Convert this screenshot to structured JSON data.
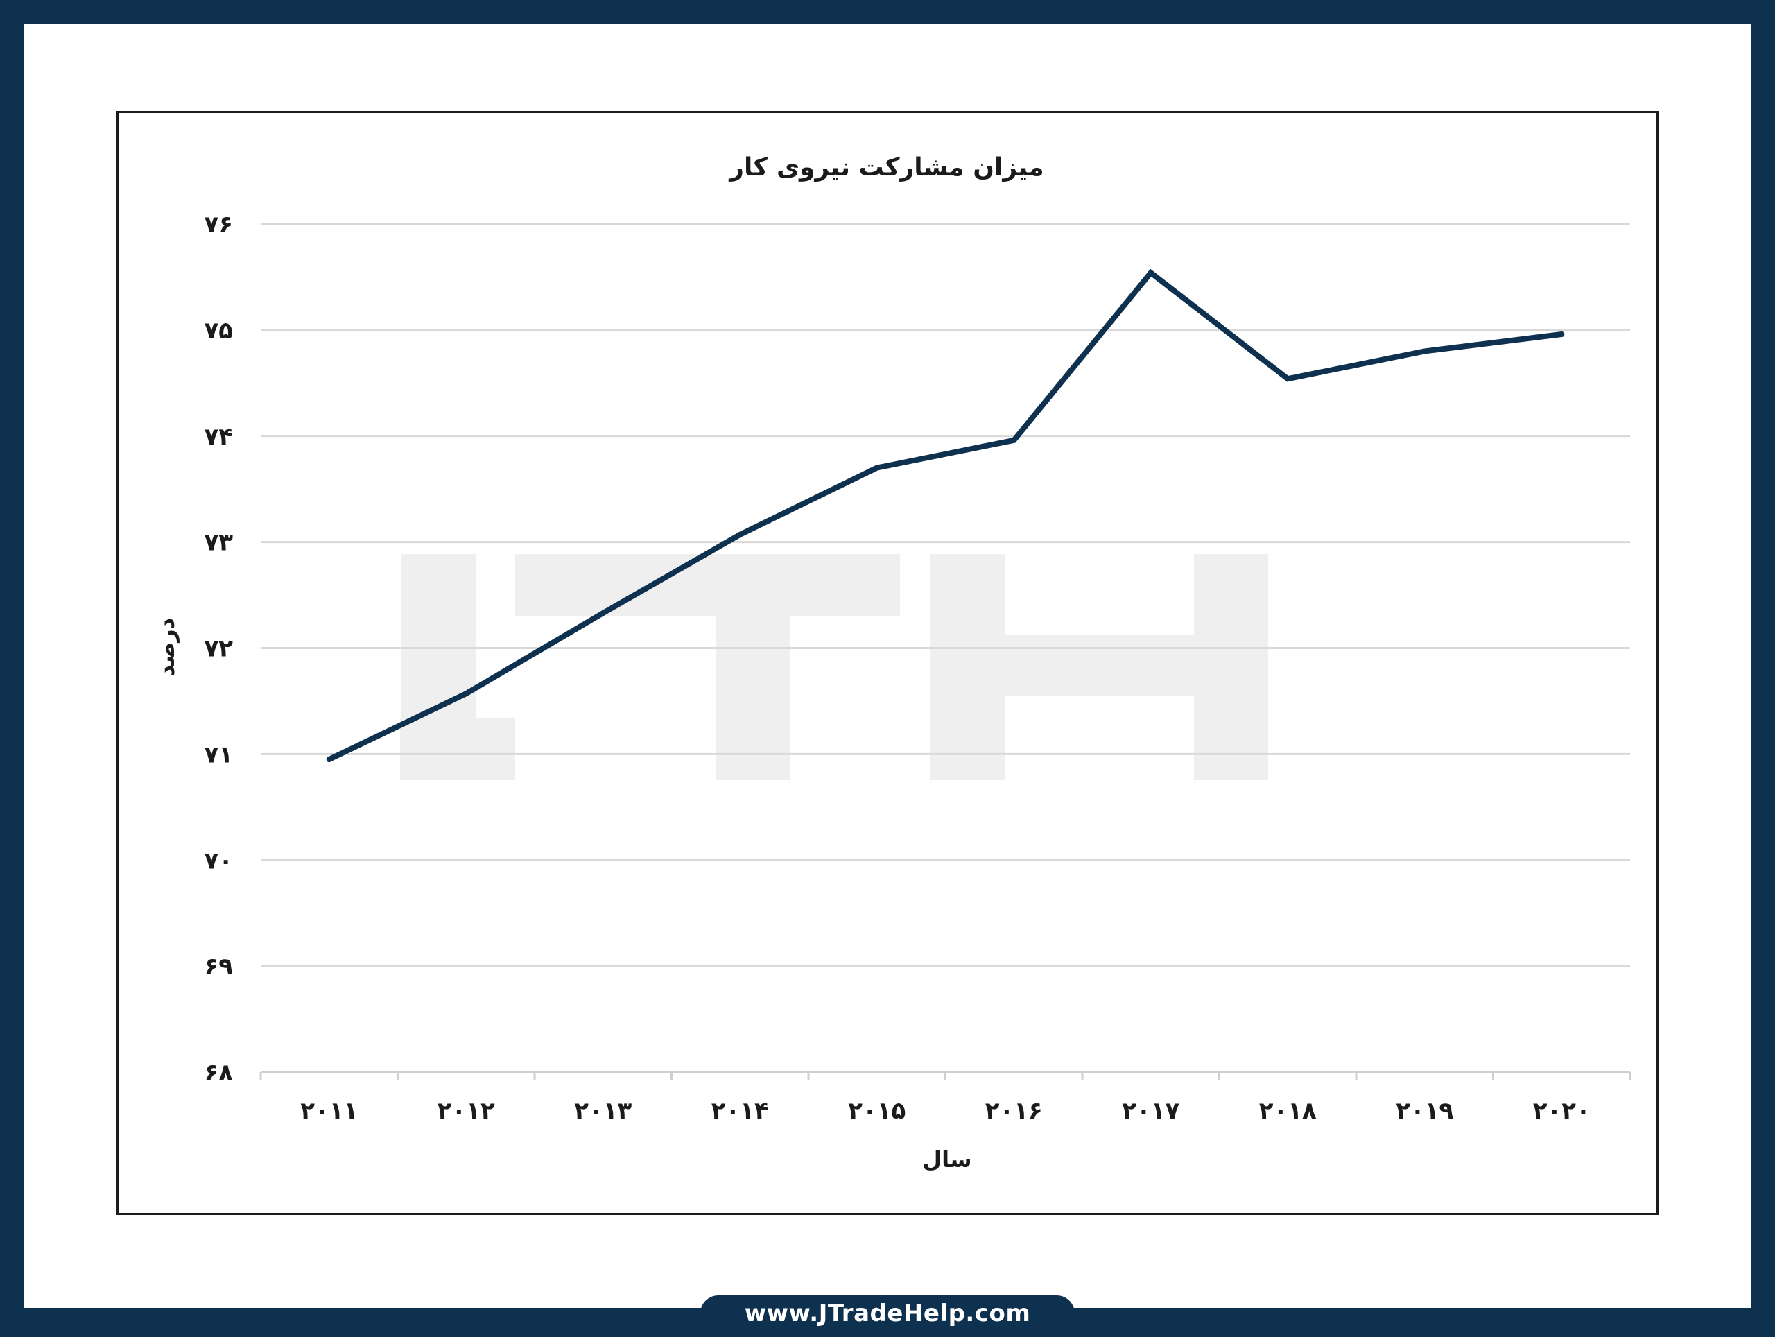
{
  "footer": {
    "url": "www.JTradeHelp.com"
  },
  "watermark": {
    "text": "JTH",
    "color": "#efefef"
  },
  "colors": {
    "frame": "#0f3150",
    "line": "#0f3150",
    "grid": "#d9d9d9",
    "text": "#1b1b1b"
  },
  "chart_data": {
    "type": "line",
    "title": "میزان مشارکت نیروی کار",
    "xlabel": "سال",
    "ylabel": "درصد",
    "categories": [
      "۲۰۱۱",
      "۲۰۱۲",
      "۲۰۱۳",
      "۲۰۱۴",
      "۲۰۱۵",
      "۲۰۱۶",
      "۲۰۱۷",
      "۲۰۱۸",
      "۲۰۱۹",
      "۲۰۲۰"
    ],
    "yticks": [
      "۶۸",
      "۶۹",
      "۷۰",
      "۷۱",
      "۷۲",
      "۷۳",
      "۷۴",
      "۷۵",
      "۷۶"
    ],
    "ylim": [
      68,
      76
    ],
    "grid": true,
    "legend": "none",
    "series": [
      {
        "values": [
          70.95,
          71.57,
          72.33,
          73.07,
          73.7,
          73.96,
          75.54,
          74.54,
          74.8,
          74.96
        ]
      }
    ]
  }
}
